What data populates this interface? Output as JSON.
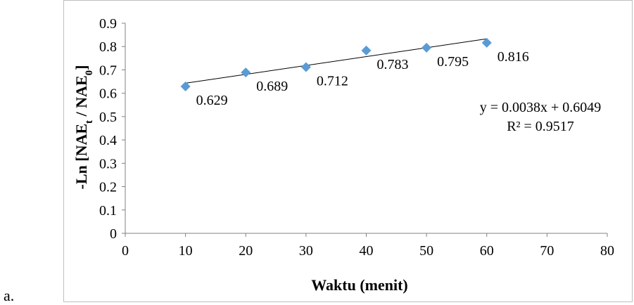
{
  "panel_label": "a.",
  "chart_data": {
    "type": "scatter",
    "title": "",
    "xlabel": "Waktu (menit)",
    "ylabel": {
      "prefix": "-Ln [NAE",
      "sub1": "t",
      "middle": " / NAE",
      "sub2": "0",
      "suffix": "]"
    },
    "xlim": [
      0,
      80
    ],
    "ylim": [
      0,
      0.9
    ],
    "x_ticks": [
      0,
      10,
      20,
      30,
      40,
      50,
      60,
      70,
      80
    ],
    "y_ticks": [
      "0",
      "0.1",
      "0.2",
      "0.3",
      "0.4",
      "0.5",
      "0.6",
      "0.7",
      "0.8",
      "0.9"
    ],
    "series": [
      {
        "x": [
          10,
          20,
          30,
          40,
          50,
          60
        ],
        "y": [
          0.629,
          0.689,
          0.712,
          0.783,
          0.795,
          0.816
        ],
        "labels": [
          "0.629",
          "0.689",
          "0.712",
          "0.783",
          "0.795",
          "0.816"
        ],
        "color": "#5b9bd5",
        "marker": "diamond"
      }
    ],
    "trendline": {
      "type": "linear",
      "slope": 0.0038,
      "intercept": 0.6049,
      "x_range": [
        10,
        60
      ],
      "color": "#000000"
    },
    "equation": "y = 0.0038x + 0.6049",
    "r_squared": "R² = 0.9517",
    "grid": false
  }
}
